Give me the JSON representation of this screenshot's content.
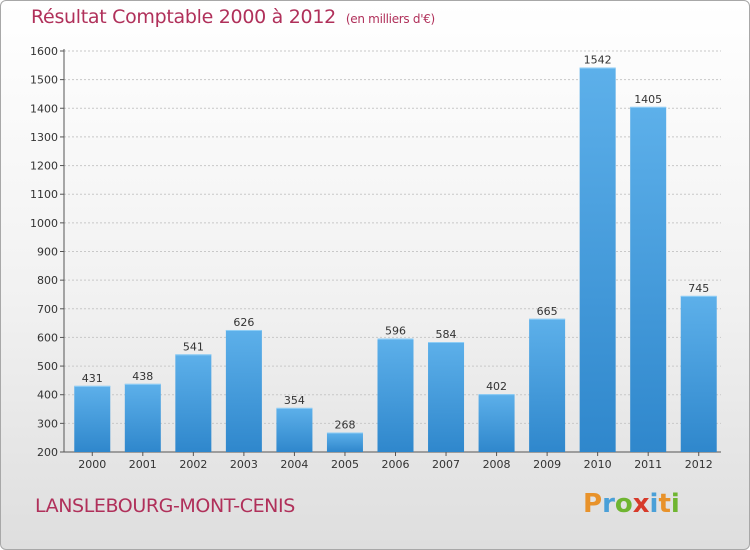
{
  "title": "Résultat Comptable 2000 à 2012",
  "unit_label": "(en milliers d'€)",
  "commune": "LANSLEBOURG-MONT-CENIS",
  "logo": {
    "letters": [
      "P",
      "r",
      "o",
      "x",
      "i",
      "t",
      "i"
    ],
    "colors": [
      "#e8922a",
      "#4aa0d8",
      "#6fb531",
      "#d73a2a",
      "#4aa0d8",
      "#e8922a",
      "#6fb531"
    ]
  },
  "colors": {
    "bar_light": "#5db0ea",
    "bar_dark": "#2f87cc",
    "axis": "#555555",
    "grid": "#c8c8c8",
    "text": "#333333"
  },
  "chart_data": {
    "type": "bar",
    "title": "Résultat Comptable 2000 à 2012",
    "xlabel": "",
    "ylabel": "en milliers d'€",
    "ylim": [
      200,
      1600
    ],
    "yticks": [
      200,
      300,
      400,
      500,
      600,
      700,
      800,
      900,
      1000,
      1100,
      1200,
      1300,
      1400,
      1500,
      1600
    ],
    "categories": [
      "2000",
      "2001",
      "2002",
      "2003",
      "2004",
      "2005",
      "2006",
      "2007",
      "2008",
      "2009",
      "2010",
      "2011",
      "2012"
    ],
    "values": [
      431,
      438,
      541,
      626,
      354,
      268,
      596,
      584,
      402,
      665,
      1542,
      1405,
      745
    ],
    "grid": true
  }
}
